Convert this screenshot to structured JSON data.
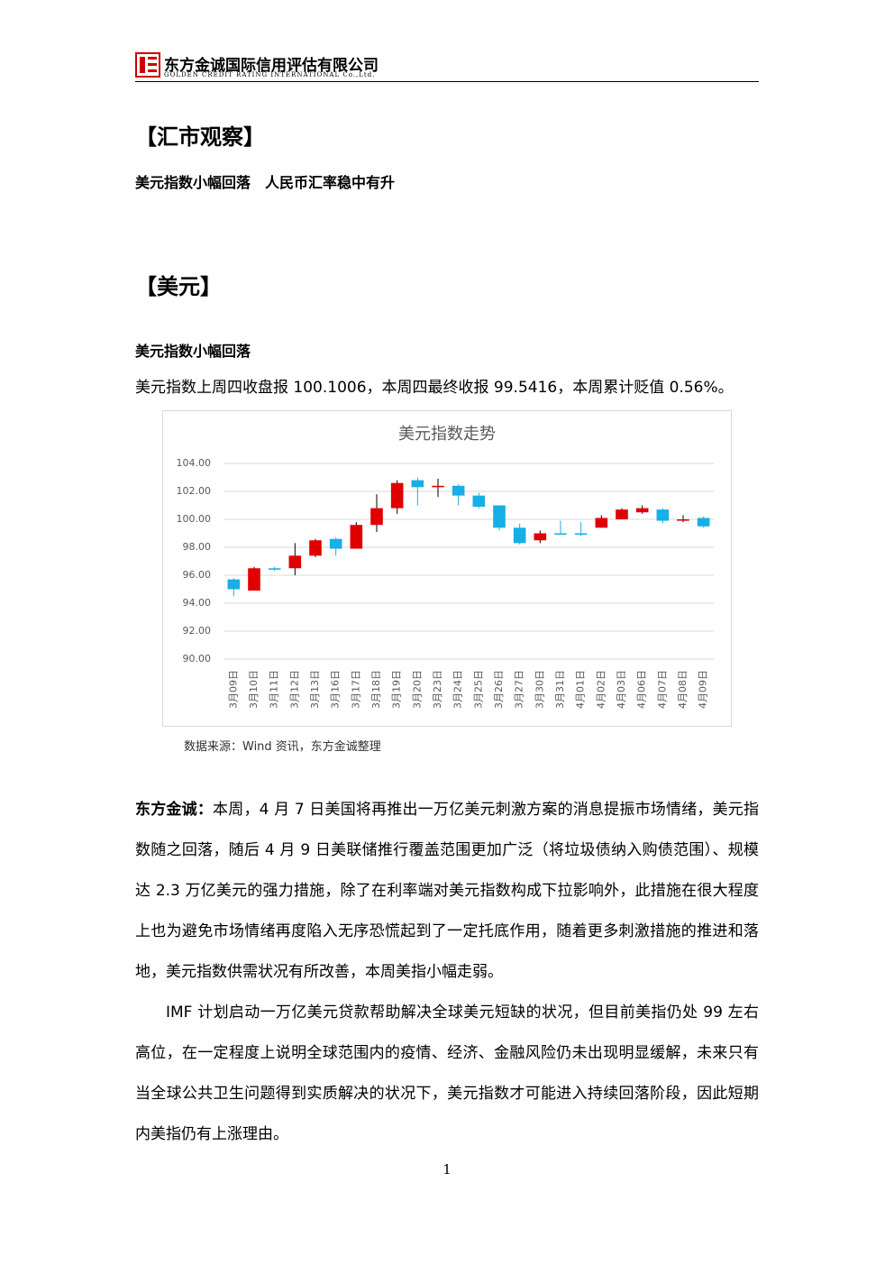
{
  "header": {
    "company": "东方金诚国际信用评估有限公司",
    "company_en": "GOLDEN CREDIT RATING INTERNATIONAL Co.,Ltd."
  },
  "section1_title": "【汇市观察】",
  "summary": "美元指数小幅回落　人民币汇率稳中有升",
  "section2_title": "【美元】",
  "subheading": "美元指数小幅回落",
  "intro": "美元指数上周四收盘报 100.1006，本周四最终收报 99.5416，本周累计贬值 0.56%。",
  "chart_data": {
    "type": "candlestick",
    "title": "美元指数走势",
    "categories": [
      "3月09日",
      "3月10日",
      "3月11日",
      "3月12日",
      "3月13日",
      "3月16日",
      "3月17日",
      "3月18日",
      "3月19日",
      "3月20日",
      "3月23日",
      "3月24日",
      "3月25日",
      "3月26日",
      "3月27日",
      "3月30日",
      "3月31日",
      "4月01日",
      "4月02日",
      "4月03日",
      "4月06日",
      "4月07日",
      "4月08日",
      "4月09日"
    ],
    "open": [
      95.7,
      94.9,
      96.5,
      96.5,
      97.4,
      98.6,
      97.9,
      99.6,
      100.8,
      102.8,
      102.3,
      102.4,
      101.7,
      101.0,
      99.4,
      98.5,
      99.0,
      99.0,
      99.4,
      100.0,
      100.5,
      100.7,
      99.9,
      100.1
    ],
    "high": [
      95.8,
      96.6,
      96.6,
      98.3,
      98.6,
      98.7,
      99.8,
      101.8,
      102.8,
      103.0,
      102.9,
      102.5,
      101.9,
      101.0,
      99.7,
      99.2,
      99.9,
      99.8,
      100.3,
      100.8,
      101.0,
      100.8,
      100.3,
      100.2
    ],
    "low": [
      94.5,
      94.9,
      96.3,
      96.0,
      97.3,
      97.4,
      97.9,
      99.1,
      100.4,
      101.0,
      101.6,
      101.0,
      100.8,
      99.2,
      98.2,
      98.3,
      98.9,
      98.8,
      99.4,
      100.0,
      100.4,
      99.7,
      99.8,
      99.4
    ],
    "close": [
      95.0,
      96.5,
      96.4,
      97.4,
      98.5,
      97.9,
      99.6,
      100.8,
      102.6,
      102.3,
      102.4,
      101.7,
      100.9,
      99.4,
      98.3,
      99.0,
      98.9,
      98.9,
      100.1,
      100.7,
      100.8,
      99.9,
      100.0,
      99.5
    ],
    "up_color": "#e00000",
    "down_color": "#18aee6",
    "ylim": [
      90,
      104
    ],
    "yticks": [
      {
        "value": 90,
        "label": "90.00"
      },
      {
        "value": 92,
        "label": "92.00"
      },
      {
        "value": 94,
        "label": "94.00"
      },
      {
        "value": 96,
        "label": "96.00"
      },
      {
        "value": 98,
        "label": "98.00"
      },
      {
        "value": 100,
        "label": "100.00"
      },
      {
        "value": 102,
        "label": "102.00"
      },
      {
        "value": 104,
        "label": "104.00"
      }
    ],
    "grid": true
  },
  "source": "数据来源：Wind 资讯，东方金诚整理",
  "paragraphs": [
    {
      "lead": "东方金诚：",
      "text": "本周，4 月 7 日美国将再推出一万亿美元刺激方案的消息提振市场情绪，美元指数随之回落，随后 4 月 9 日美联储推行覆盖范围更加广泛（将垃圾债纳入购债范围）、规模达 2.3 万亿美元的强力措施，除了在利率端对美元指数构成下拉影响外，此措施在很大程度上也为避免市场情绪再度陷入无序恐慌起到了一定托底作用，随着更多刺激措施的推进和落地，美元指数供需状况有所改善，本周美指小幅走弱。"
    },
    {
      "text": "IMF 计划启动一万亿美元贷款帮助解决全球美元短缺的状况，但目前美指仍处 99 左右高位，在一定程度上说明全球范围内的疫情、经济、金融风险仍未出现明显缓解，未来只有当全球公共卫生问题得到实质解决的状况下，美元指数才可能进入持续回落阶段，因此短期内美指仍有上涨理由。"
    }
  ],
  "page_number": "1"
}
